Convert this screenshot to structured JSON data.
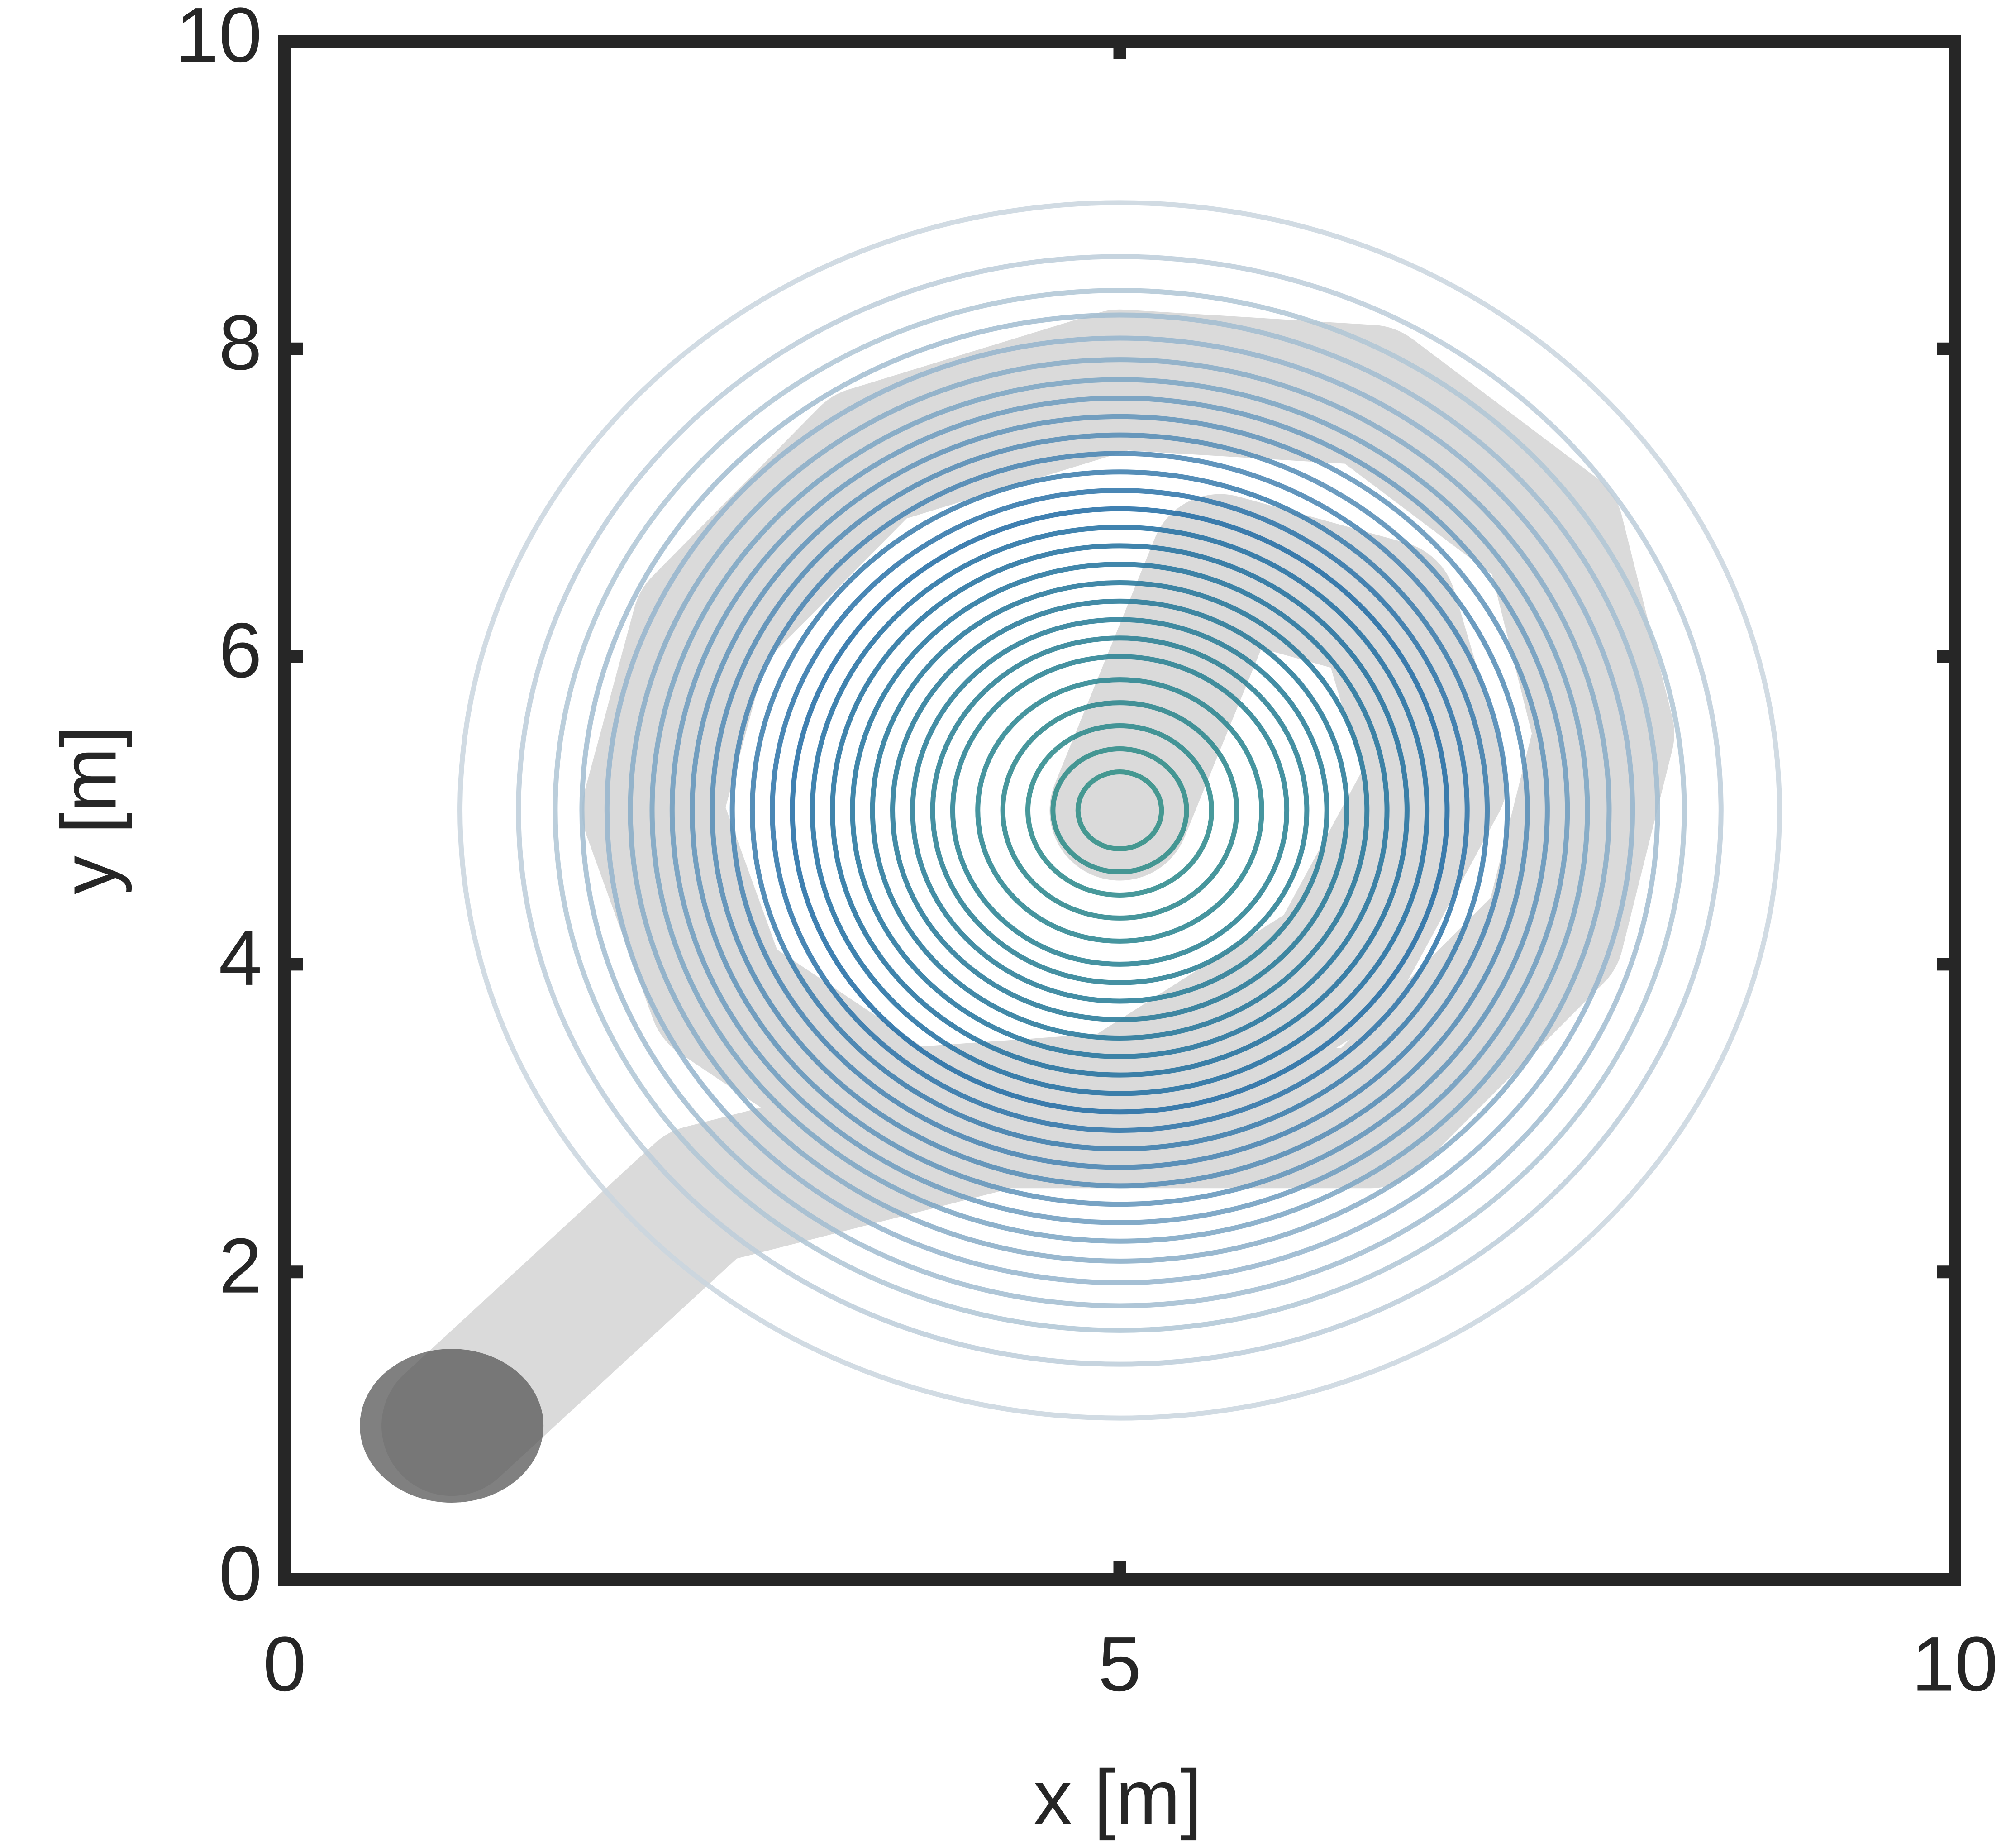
{
  "chart_data": {
    "type": "contour",
    "xlabel": "x [m]",
    "ylabel": "y [m]",
    "xlim": [
      0,
      10
    ],
    "ylim": [
      0,
      10
    ],
    "xticks": [
      0,
      5,
      10
    ],
    "yticks": [
      0,
      2,
      4,
      6,
      8,
      10
    ],
    "contours": {
      "center": [
        5,
        5
      ],
      "radii": [
        0.25,
        0.4,
        0.55,
        0.7,
        0.85,
        1.0,
        1.12,
        1.24,
        1.36,
        1.48,
        1.6,
        1.72,
        1.84,
        1.96,
        2.08,
        2.2,
        2.32,
        2.44,
        2.56,
        2.68,
        2.8,
        2.93,
        3.07,
        3.22,
        3.38,
        3.6,
        3.95
      ],
      "colors": [
        "#2a8c84",
        "#1d6aa3",
        "#c9d5de"
      ]
    },
    "path": {
      "color": "#555555",
      "x": [
        1,
        2.5,
        4.3,
        6.5,
        7.6,
        7.9,
        7.6,
        6.5,
        5,
        3.5,
        2.5,
        2.2,
        2.6,
        3.7,
        5,
        6.3,
        6.9,
        6.6,
        5.6,
        5
      ],
      "y": [
        1,
        2.5,
        3.0,
        3.0,
        4.2,
        5.5,
        6.8,
        7.7,
        7.8,
        7.3,
        6.2,
        5,
        3.8,
        3.0,
        3.1,
        4.0,
        5.2,
        6.3,
        6.6,
        5
      ]
    },
    "frame_color": "#262626"
  }
}
